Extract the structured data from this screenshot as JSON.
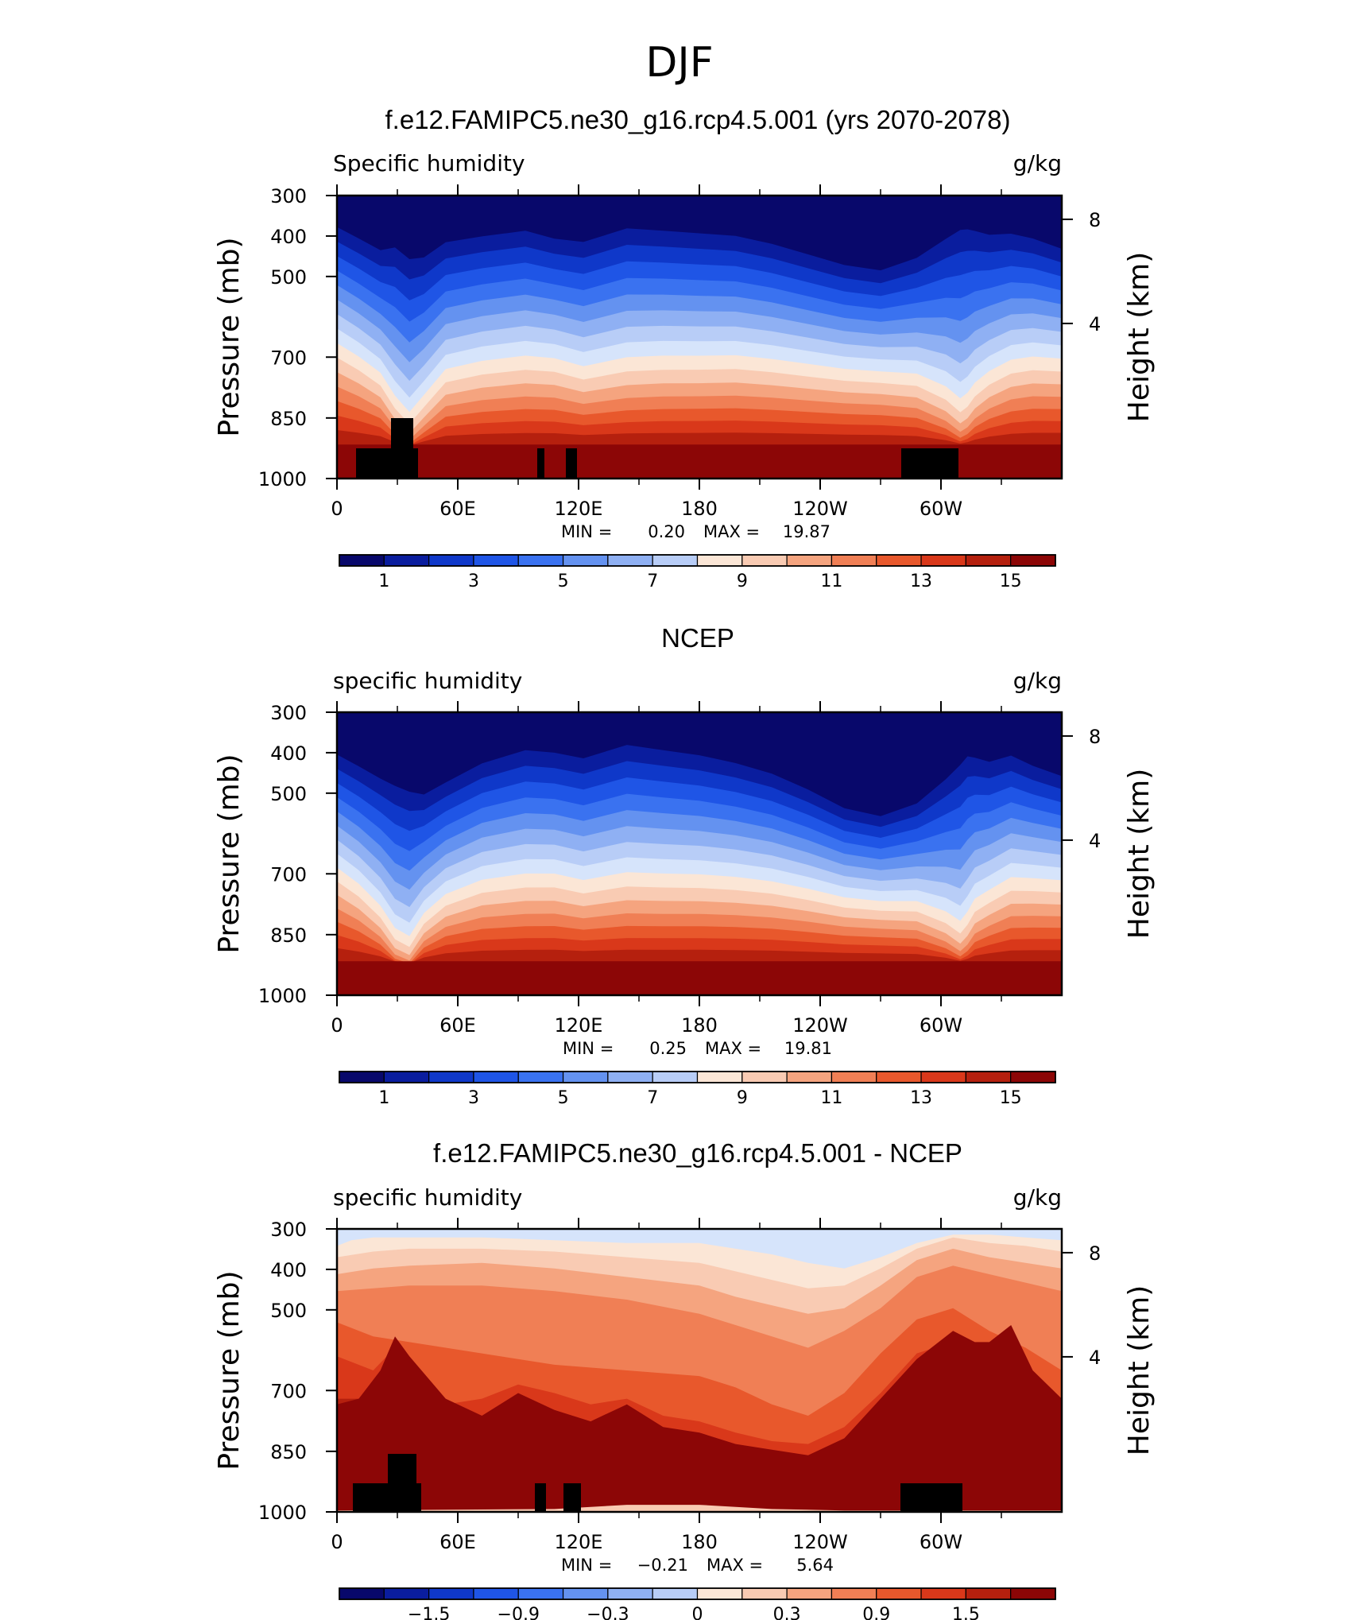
{
  "page_title": "DJF",
  "colors": {
    "scale": [
      "#08086b",
      "#0a1d9e",
      "#0f38c9",
      "#1f55e6",
      "#3a72f0",
      "#6492f0",
      "#8fb0f3",
      "#b8cdf7",
      "#d6e4fb",
      "#fbe6d6",
      "#f9cbb3",
      "#f5a47f",
      "#f07f55",
      "#e8582c",
      "#d9381a",
      "#b5200e",
      "#8c0606"
    ],
    "mask": "#000000"
  },
  "chart_data": [
    {
      "type": "heatmap",
      "title": "f.e12.FAMIPC5.ne30_g16.rcp4.5.001 (yrs 2070-2078)",
      "left_label": "Specific humidity",
      "units": "g/kg",
      "ylabel": "Pressure (mb)",
      "y2label": "Height (km)",
      "x_ticks": [
        "0",
        "60E",
        "120E",
        "180",
        "120W",
        "60W"
      ],
      "y_ticks": [
        "300",
        "400",
        "500",
        "700",
        "850",
        "1000"
      ],
      "y2_ticks": [
        "8",
        "4"
      ],
      "min_label": "MIN =",
      "min": "0.20",
      "max_label": "MAX =",
      "max": "19.87",
      "colorbar_labels": [
        "1",
        "3",
        "5",
        "7",
        "9",
        "11",
        "13",
        "15"
      ]
    },
    {
      "type": "heatmap",
      "title": "NCEP",
      "left_label": "specific humidity",
      "units": "g/kg",
      "ylabel": "Pressure (mb)",
      "y2label": "Height (km)",
      "x_ticks": [
        "0",
        "60E",
        "120E",
        "180",
        "120W",
        "60W"
      ],
      "y_ticks": [
        "300",
        "400",
        "500",
        "700",
        "850",
        "1000"
      ],
      "y2_ticks": [
        "8",
        "4"
      ],
      "min_label": "MIN =",
      "min": "0.25",
      "max_label": "MAX =",
      "max": "19.81",
      "colorbar_labels": [
        "1",
        "3",
        "5",
        "7",
        "9",
        "11",
        "13",
        "15"
      ]
    },
    {
      "type": "heatmap",
      "title": "f.e12.FAMIPC5.ne30_g16.rcp4.5.001 - NCEP",
      "left_label": "specific humidity",
      "units": "g/kg",
      "ylabel": "Pressure (mb)",
      "y2label": "Height (km)",
      "x_ticks": [
        "0",
        "60E",
        "120E",
        "180",
        "120W",
        "60W"
      ],
      "y_ticks": [
        "300",
        "400",
        "500",
        "700",
        "850",
        "1000"
      ],
      "y2_ticks": [
        "8",
        "4"
      ],
      "min_label": "MIN =",
      "min": "−0.21",
      "max_label": "MAX =",
      "max": "5.64",
      "colorbar_labels": [
        "−1.5",
        "−0.9",
        "−0.3",
        "0",
        "0.3",
        "0.9",
        "1.5"
      ]
    }
  ]
}
